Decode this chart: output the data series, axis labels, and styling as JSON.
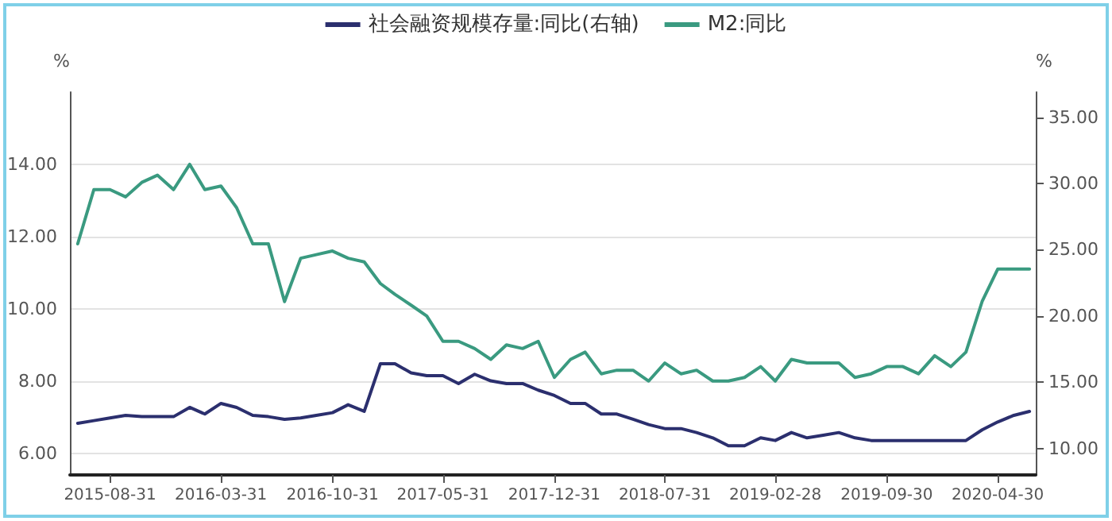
{
  "chart_data": {
    "type": "line",
    "x": [
      "2015-06-30",
      "2015-07-31",
      "2015-08-31",
      "2015-09-30",
      "2015-10-31",
      "2015-11-30",
      "2015-12-31",
      "2016-01-31",
      "2016-02-29",
      "2016-03-31",
      "2016-04-30",
      "2016-05-31",
      "2016-06-30",
      "2016-07-31",
      "2016-08-31",
      "2016-09-30",
      "2016-10-31",
      "2016-11-30",
      "2016-12-31",
      "2017-01-31",
      "2017-02-28",
      "2017-03-31",
      "2017-04-30",
      "2017-05-31",
      "2017-06-30",
      "2017-07-31",
      "2017-08-31",
      "2017-09-30",
      "2017-10-31",
      "2017-11-30",
      "2017-12-31",
      "2018-01-31",
      "2018-02-28",
      "2018-03-31",
      "2018-04-30",
      "2018-05-31",
      "2018-06-30",
      "2018-07-31",
      "2018-08-31",
      "2018-09-30",
      "2018-10-31",
      "2018-11-30",
      "2018-12-31",
      "2019-01-31",
      "2019-02-28",
      "2019-03-31",
      "2019-04-30",
      "2019-05-31",
      "2019-06-30",
      "2019-07-31",
      "2019-08-31",
      "2019-09-30",
      "2019-10-31",
      "2019-11-30",
      "2019-12-31",
      "2020-01-31",
      "2020-02-29",
      "2020-03-31",
      "2020-04-30",
      "2020-05-31",
      "2020-06-30"
    ],
    "series": [
      {
        "name": "社会融资规模存量:同比(右轴)",
        "color": "#2b2f6e",
        "axis": "y2",
        "values": [
          11.9,
          12.1,
          12.3,
          12.5,
          12.4,
          12.4,
          12.4,
          13.1,
          12.6,
          13.4,
          13.1,
          12.5,
          12.4,
          12.2,
          12.3,
          12.5,
          12.7,
          13.3,
          12.8,
          16.4,
          16.4,
          15.7,
          15.5,
          15.5,
          14.9,
          15.6,
          15.1,
          14.9,
          14.9,
          14.4,
          14.0,
          13.4,
          13.4,
          12.6,
          12.6,
          12.2,
          11.8,
          11.5,
          11.5,
          11.2,
          10.8,
          10.2,
          10.2,
          10.8,
          10.6,
          11.2,
          10.8,
          11.0,
          11.2,
          10.8,
          10.6,
          10.6,
          10.6,
          10.6,
          10.6,
          10.6,
          10.6,
          11.4,
          12.0,
          12.5,
          12.8
        ]
      },
      {
        "name": "M2:同比",
        "color": "#3a9a80",
        "values": [
          11.8,
          13.3,
          13.3,
          13.1,
          13.5,
          13.7,
          13.3,
          14.0,
          13.3,
          13.4,
          12.8,
          11.8,
          11.8,
          10.2,
          11.4,
          11.5,
          11.6,
          11.4,
          11.3,
          10.7,
          10.4,
          10.1,
          9.8,
          9.1,
          9.1,
          8.9,
          8.6,
          9.0,
          8.9,
          9.1,
          8.1,
          8.6,
          8.8,
          8.2,
          8.3,
          8.3,
          8.0,
          8.5,
          8.2,
          8.3,
          8.0,
          8.0,
          8.1,
          8.4,
          8.0,
          8.6,
          8.5,
          8.5,
          8.5,
          8.1,
          8.2,
          8.4,
          8.4,
          8.2,
          8.7,
          8.4,
          8.8,
          10.2,
          11.1,
          11.1,
          11.1
        ]
      }
    ],
    "ylabel": "%",
    "y2label": "%",
    "xlim": [
      "2015-06-15",
      "2020-07-12"
    ],
    "xticks": [
      "2015-08-31",
      "2016-03-31",
      "2016-10-31",
      "2017-05-31",
      "2017-12-31",
      "2018-07-31",
      "2019-02-28",
      "2019-09-30",
      "2020-04-30"
    ],
    "ylim": [
      5.4,
      16
    ],
    "yticks": [
      {
        "value": 6,
        "label": "6.00"
      },
      {
        "value": 8,
        "label": "8.00"
      },
      {
        "value": 10,
        "label": "10.00"
      },
      {
        "value": 12,
        "label": "12.00"
      },
      {
        "value": 14,
        "label": "14.00"
      }
    ],
    "y2lim": [
      8,
      36.9
    ],
    "y2ticks": [
      {
        "value": 10,
        "label": "10.00"
      },
      {
        "value": 15,
        "label": "15.00"
      },
      {
        "value": 20,
        "label": "20.00"
      },
      {
        "value": 25,
        "label": "25.00"
      },
      {
        "value": 30,
        "label": "30.00"
      },
      {
        "value": 35,
        "label": "35.00"
      }
    ],
    "grid": "y",
    "legend": "top",
    "marker": "none",
    "line_style": "solid"
  }
}
